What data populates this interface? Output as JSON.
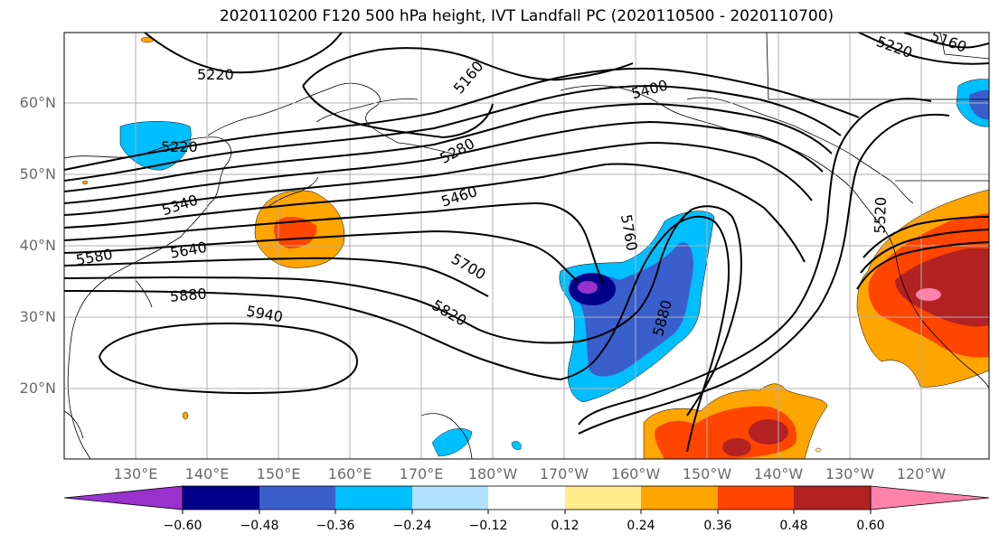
{
  "title": "2020110200 F120 500 hPa height, IVT Landfall PC (2020110500 - 2020110700)",
  "lat_ticks": [
    "60°N",
    "50°N",
    "40°N",
    "30°N",
    "20°N"
  ],
  "lon_ticks": [
    "130°E",
    "140°E",
    "150°E",
    "160°E",
    "170°E",
    "180°W",
    "170°W",
    "160°W",
    "150°W",
    "140°W",
    "130°W",
    "120°W"
  ],
  "colorbar": {
    "ticks": [
      "−0.60",
      "−0.48",
      "−0.36",
      "−0.24",
      "−0.12",
      "0.12",
      "0.24",
      "0.36",
      "0.48",
      "0.60"
    ],
    "colors": [
      "#9932cc",
      "#00008b",
      "#3a5fcd",
      "#00bfff",
      "#b0e2ff",
      "#ffffff",
      "#ffec8b",
      "#ffa500",
      "#ff4500",
      "#b22222",
      "#ff82ab"
    ]
  },
  "contour_labels": [
    "5220",
    "5220",
    "5160",
    "5220",
    "5160",
    "5400",
    "5280",
    "5460",
    "5340",
    "5580",
    "5640",
    "5880",
    "5700",
    "5760",
    "5820",
    "5940",
    "5880",
    "5520"
  ]
}
